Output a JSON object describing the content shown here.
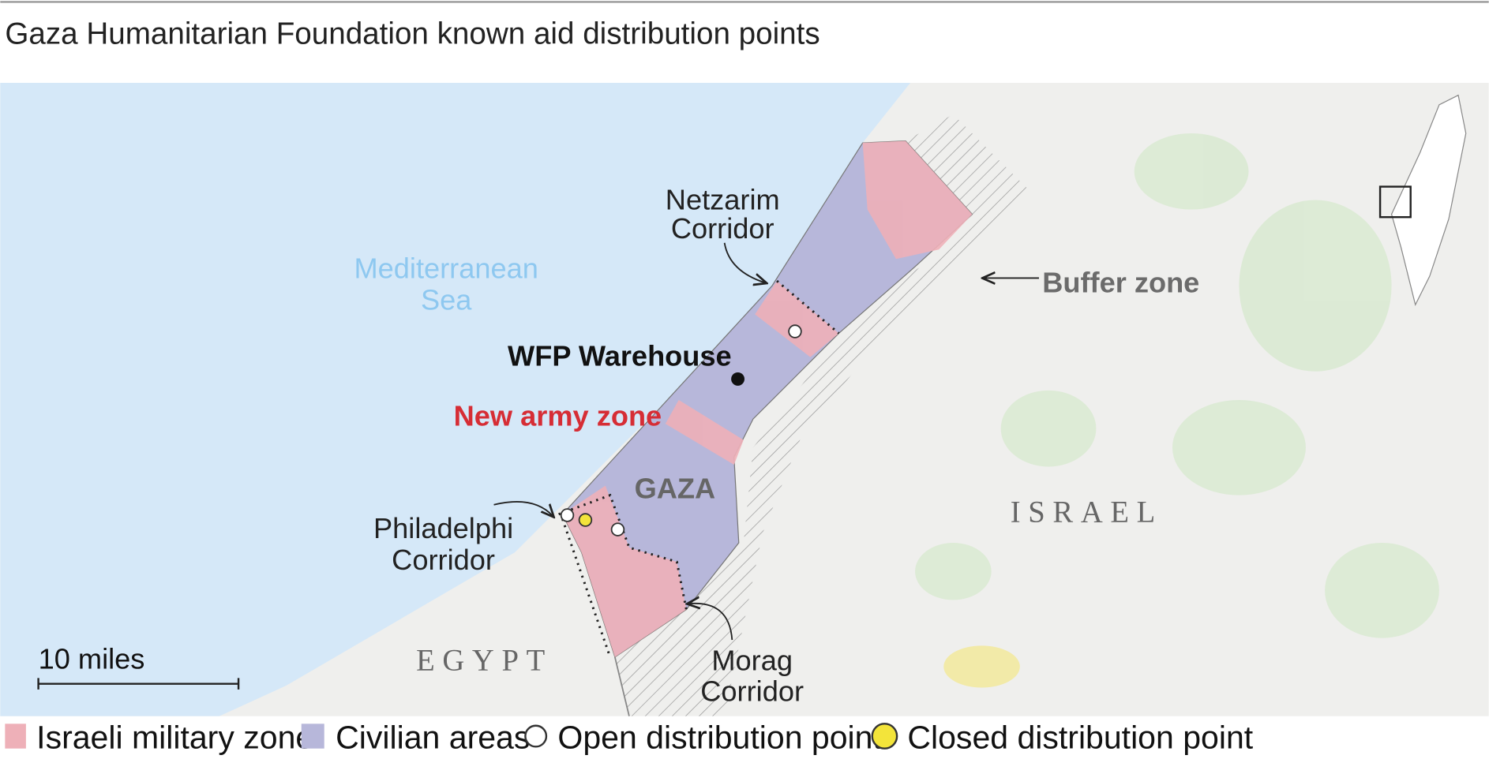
{
  "title": "Gaza Humanitarian Foundation known aid distribution points",
  "map": {
    "labels": {
      "netzarim": [
        "Netzarim",
        "Corridor"
      ],
      "sea": [
        "Mediterranean",
        "Sea"
      ],
      "buffer": "Buffer zone",
      "warehouse": "WFP Warehouse",
      "army_zone": "New army zone",
      "gaza": "GAZA",
      "israel": "ISRAEL",
      "philadelphi": [
        "Philadelphi",
        "Corridor"
      ],
      "egypt": "EGYPT",
      "morag": [
        "Morag",
        "Corridor"
      ]
    },
    "scale": "10 miles"
  },
  "legend": [
    "Israeli military zone",
    "Civilian areas",
    "Open distribution point",
    "Closed distribution point"
  ]
}
